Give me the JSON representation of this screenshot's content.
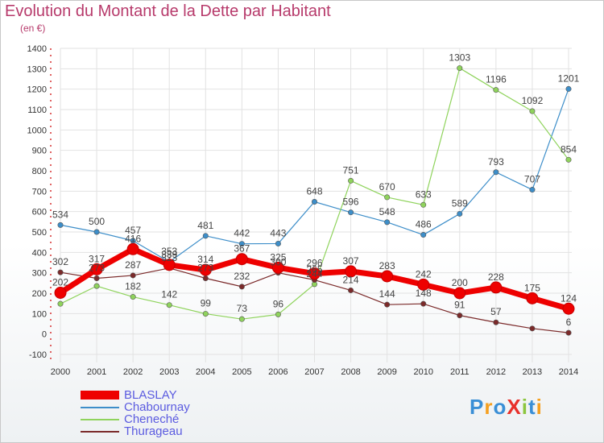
{
  "title": "Evolution du Montant de la Dette par Habitant",
  "subtitle": "(en €)",
  "logo": {
    "text": "ProXiti"
  },
  "chart_data": {
    "type": "line",
    "categories": [
      "2000",
      "2001",
      "2002",
      "2003",
      "2004",
      "2005",
      "2006",
      "2007",
      "2008",
      "2009",
      "2010",
      "2011",
      "2012",
      "2013",
      "2014"
    ],
    "ylim": [
      -100,
      1400
    ],
    "yticks": [
      -100,
      0,
      100,
      200,
      300,
      400,
      500,
      600,
      700,
      800,
      900,
      1000,
      1100,
      1200,
      1300,
      1400
    ],
    "grid": true,
    "legend_position": "bottom-left",
    "series": [
      {
        "name": "BLASLAY",
        "color": "#ee0000",
        "values": [
          202,
          317,
          416,
          339,
          314,
          367,
          325,
          296,
          307,
          283,
          242,
          200,
          228,
          175,
          124
        ]
      },
      {
        "name": "Chabournay",
        "color": "#3d8ec9",
        "values": [
          534,
          500,
          457,
          353,
          481,
          442,
          443,
          648,
          596,
          548,
          486,
          589,
          793,
          707,
          1201
        ]
      },
      {
        "name": "Cheneché",
        "color": "#8fd35c",
        "values": [
          148,
          235,
          182,
          142,
          99,
          73,
          96,
          244,
          751,
          670,
          633,
          1303,
          1196,
          1092,
          854
        ]
      },
      {
        "name": "Thurageau",
        "color": "#7b2a2a",
        "values": [
          302,
          273,
          287,
          323,
          273,
          232,
          300,
          265,
          214,
          144,
          148,
          91,
          57,
          27,
          6
        ]
      }
    ],
    "data_labels": [
      [
        202,
        317,
        416,
        339,
        314,
        367,
        325,
        296,
        307,
        283,
        242,
        200,
        228,
        175,
        124
      ],
      [
        534,
        500,
        457,
        353,
        481,
        442,
        443,
        648,
        596,
        548,
        486,
        589,
        793,
        707,
        1201
      ],
      [
        null,
        null,
        182,
        142,
        99,
        73,
        96,
        244,
        751,
        670,
        633,
        1303,
        1196,
        1092,
        854
      ],
      [
        302,
        273,
        287,
        323,
        273,
        232,
        300,
        265,
        214,
        144,
        148,
        91,
        57,
        null,
        6
      ]
    ]
  }
}
